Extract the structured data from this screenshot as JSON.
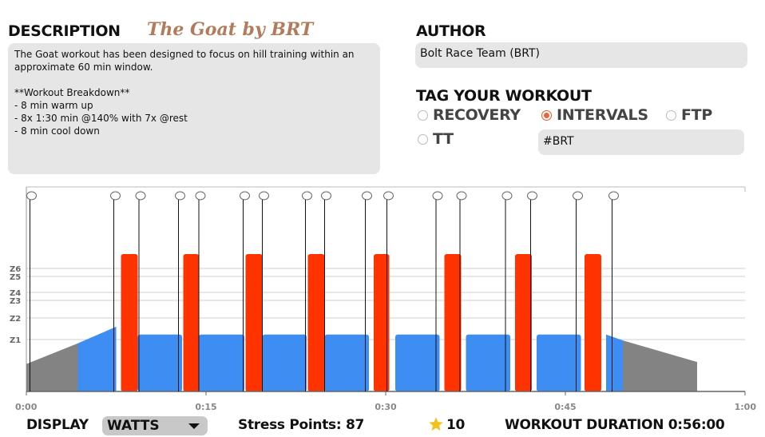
{
  "description": {
    "header": "DESCRIPTION",
    "workout_title": "The Goat by BRT",
    "text": "The Goat workout has been designed to focus on hill training within an approximate 60 min window.\n\n**Workout Breakdown**\n- 8 min warm up\n- 8x 1:30 min @140% with 7x @rest\n- 8 min cool down"
  },
  "author": {
    "header": "AUTHOR",
    "value": "Bolt Race Team (BRT)"
  },
  "tags": {
    "header": "TAG YOUR WORKOUT",
    "options": [
      {
        "label": "RECOVERY",
        "selected": false
      },
      {
        "label": "INTERVALS",
        "selected": true
      },
      {
        "label": "FTP",
        "selected": false
      },
      {
        "label": "TT",
        "selected": false
      }
    ],
    "input_value": "#BRT"
  },
  "chart_data": {
    "type": "area",
    "zone_labels": [
      "Z6",
      "Z5",
      "Z4",
      "Z3",
      "Z2",
      "Z1"
    ],
    "x_ticks": [
      "0:00",
      "0:15",
      "0:30",
      "0:45",
      "1:00"
    ],
    "xlim_min": [
      0,
      60
    ],
    "colors": {
      "warm": "#838383",
      "blue": "#3d8df2",
      "red": "#ff3300",
      "grid": "#cfcfcf"
    },
    "segments": [
      {
        "kind": "ramp",
        "color": "warm",
        "start": 0.0,
        "end": 4.3,
        "power_start": 0.28,
        "power_end": 0.49
      },
      {
        "kind": "ramp",
        "color": "blue",
        "start": 4.3,
        "end": 7.5,
        "power_start": 0.49,
        "power_end": 0.66
      },
      {
        "kind": "steady",
        "color": "red",
        "start": 7.9,
        "end": 9.3,
        "power": 1.4
      },
      {
        "kind": "steady",
        "color": "blue",
        "start": 9.3,
        "end": 13.0,
        "power": 0.58
      },
      {
        "kind": "steady",
        "color": "red",
        "start": 13.1,
        "end": 14.4,
        "power": 1.4
      },
      {
        "kind": "steady",
        "color": "blue",
        "start": 14.4,
        "end": 18.2,
        "power": 0.58
      },
      {
        "kind": "steady",
        "color": "red",
        "start": 18.3,
        "end": 19.7,
        "power": 1.4
      },
      {
        "kind": "steady",
        "color": "blue",
        "start": 19.7,
        "end": 23.4,
        "power": 0.58
      },
      {
        "kind": "steady",
        "color": "red",
        "start": 23.5,
        "end": 24.9,
        "power": 1.4
      },
      {
        "kind": "steady",
        "color": "blue",
        "start": 24.9,
        "end": 28.6,
        "power": 0.58
      },
      {
        "kind": "steady",
        "color": "red",
        "start": 29.0,
        "end": 30.3,
        "power": 1.4
      },
      {
        "kind": "steady",
        "color": "blue",
        "start": 30.8,
        "end": 34.5,
        "power": 0.58
      },
      {
        "kind": "steady",
        "color": "red",
        "start": 34.9,
        "end": 36.3,
        "power": 1.4
      },
      {
        "kind": "steady",
        "color": "blue",
        "start": 36.7,
        "end": 40.4,
        "power": 0.58
      },
      {
        "kind": "steady",
        "color": "red",
        "start": 40.8,
        "end": 42.2,
        "power": 1.4
      },
      {
        "kind": "steady",
        "color": "blue",
        "start": 42.6,
        "end": 46.3,
        "power": 0.58
      },
      {
        "kind": "steady",
        "color": "red",
        "start": 46.6,
        "end": 48.0,
        "power": 1.4
      },
      {
        "kind": "ramp",
        "color": "blue",
        "start": 48.4,
        "end": 49.8,
        "power_start": 0.58,
        "power_end": 0.52
      },
      {
        "kind": "ramp",
        "color": "warm",
        "start": 49.8,
        "end": 56.0,
        "power_start": 0.52,
        "power_end": 0.3
      }
    ],
    "markers": [
      0.3,
      7.3,
      9.4,
      12.7,
      14.4,
      18.1,
      19.7,
      23.3,
      24.9,
      28.3,
      30.1,
      34.2,
      36.2,
      40.0,
      42.1,
      45.9,
      48.9
    ]
  },
  "footer": {
    "display_label": "DISPLAY",
    "display_value": "WATTS",
    "stress_label": "Stress Points:",
    "stress_value": "87",
    "rating": "10",
    "duration_label": "WORKOUT DURATION",
    "duration_value": "0:56:00"
  }
}
